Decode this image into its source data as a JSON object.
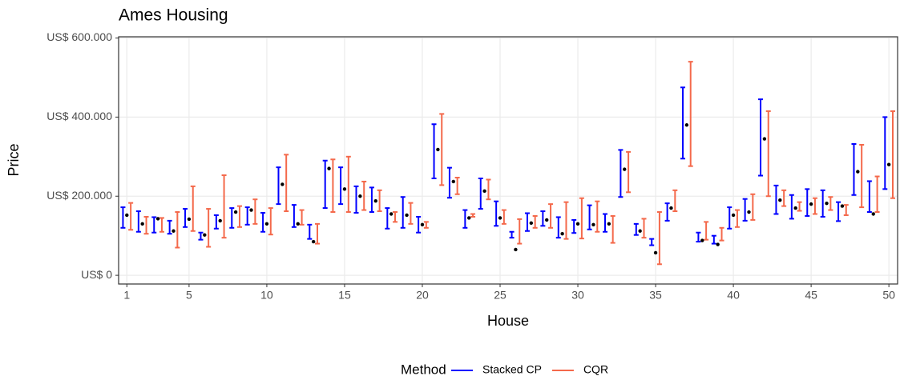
{
  "chart_data": {
    "type": "interval",
    "title": "Ames Housing",
    "x_label": "House",
    "y_label": "Price",
    "x": [
      1,
      2,
      3,
      4,
      5,
      6,
      7,
      8,
      9,
      10,
      11,
      12,
      13,
      14,
      15,
      16,
      17,
      18,
      19,
      20,
      21,
      22,
      23,
      24,
      25,
      26,
      27,
      28,
      29,
      30,
      31,
      32,
      33,
      34,
      35,
      36,
      37,
      38,
      39,
      40,
      41,
      42,
      43,
      44,
      45,
      46,
      47,
      48,
      49,
      50
    ],
    "series": [
      {
        "name": "Stacked CP",
        "color": "#0000ff",
        "lower": [
          120000,
          110000,
          108000,
          105000,
          122000,
          90000,
          118000,
          120000,
          128000,
          110000,
          180000,
          122000,
          92000,
          170000,
          180000,
          158000,
          160000,
          118000,
          120000,
          108000,
          245000,
          196000,
          120000,
          168000,
          125000,
          95000,
          112000,
          125000,
          95000,
          107000,
          116000,
          110000,
          198000,
          102000,
          76000,
          138000,
          295000,
          85000,
          80000,
          118000,
          138000,
          252000,
          155000,
          143000,
          150000,
          148000,
          137000,
          203000,
          160000,
          218000
        ],
        "upper": [
          172000,
          162000,
          147000,
          138000,
          168000,
          108000,
          152000,
          170000,
          172000,
          158000,
          273000,
          178000,
          128000,
          290000,
          273000,
          225000,
          222000,
          170000,
          198000,
          148000,
          382000,
          272000,
          165000,
          245000,
          187000,
          110000,
          157000,
          162000,
          147000,
          140000,
          177000,
          155000,
          317000,
          130000,
          92000,
          182000,
          475000,
          108000,
          100000,
          172000,
          193000,
          445000,
          227000,
          203000,
          218000,
          215000,
          185000,
          332000,
          238000,
          400000
        ]
      },
      {
        "name": "CQR",
        "color": "#f4694b",
        "lower": [
          115000,
          105000,
          110000,
          70000,
          112000,
          72000,
          95000,
          122000,
          130000,
          103000,
          162000,
          128000,
          80000,
          160000,
          160000,
          165000,
          162000,
          135000,
          130000,
          120000,
          228000,
          205000,
          148000,
          192000,
          130000,
          80000,
          120000,
          120000,
          92000,
          93000,
          110000,
          82000,
          210000,
          95000,
          28000,
          162000,
          276000,
          90000,
          88000,
          122000,
          140000,
          200000,
          175000,
          163000,
          155000,
          165000,
          152000,
          172000,
          160000,
          195000
        ],
        "upper": [
          183000,
          148000,
          145000,
          160000,
          225000,
          168000,
          253000,
          175000,
          192000,
          170000,
          305000,
          165000,
          130000,
          293000,
          300000,
          237000,
          215000,
          160000,
          183000,
          135000,
          408000,
          247000,
          155000,
          242000,
          165000,
          142000,
          150000,
          180000,
          185000,
          195000,
          187000,
          150000,
          312000,
          143000,
          160000,
          215000,
          540000,
          135000,
          120000,
          165000,
          205000,
          415000,
          215000,
          185000,
          195000,
          198000,
          178000,
          330000,
          250000,
          415000
        ]
      }
    ],
    "truth": [
      152000,
      130000,
      143000,
      112000,
      142000,
      102000,
      138000,
      160000,
      165000,
      130000,
      230000,
      130000,
      85000,
      270000,
      218000,
      200000,
      188000,
      155000,
      152000,
      128000,
      318000,
      237000,
      145000,
      213000,
      145000,
      65000,
      132000,
      140000,
      105000,
      130000,
      128000,
      130000,
      268000,
      112000,
      57000,
      170000,
      380000,
      88000,
      78000,
      152000,
      160000,
      345000,
      190000,
      170000,
      180000,
      182000,
      175000,
      262000,
      155000,
      280000
    ],
    "point_color": "#000000",
    "xlim": [
      0.47,
      50.56
    ],
    "ylim": [
      -22000,
      603000
    ],
    "xticks": [
      1,
      5,
      10,
      15,
      20,
      25,
      30,
      35,
      40,
      45,
      50
    ],
    "yticks": [
      {
        "value": 0,
        "label": "US$ 0"
      },
      {
        "value": 200000,
        "label": "US$ 200.000"
      },
      {
        "value": 400000,
        "label": "US$ 400.000"
      },
      {
        "value": 600000,
        "label": "US$ 600.000"
      }
    ],
    "grid": true,
    "legend_title": "Method",
    "legend_position": "bottom"
  }
}
